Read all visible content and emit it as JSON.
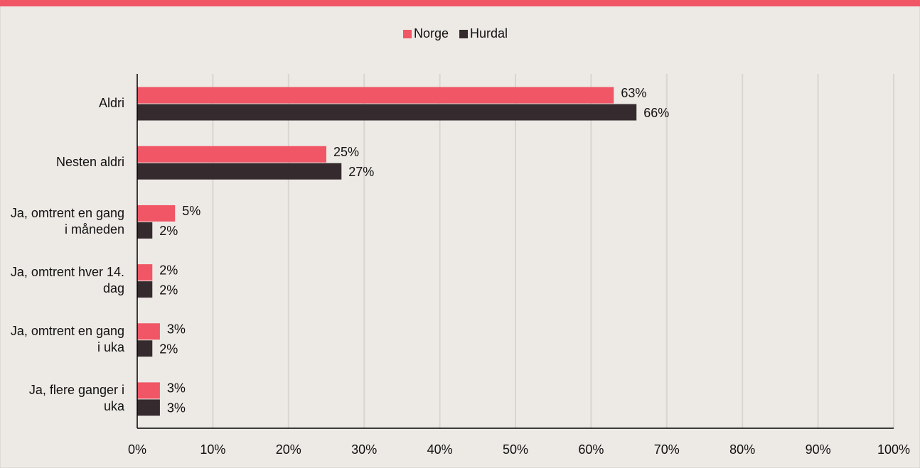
{
  "chart_data": {
    "type": "hbar",
    "categories": [
      "Aldri",
      "Nesten aldri",
      "Ja, omtrent en gang i måneden",
      "Ja, omtrent hver 14. dag",
      "Ja, omtrent en gang i uka",
      "Ja, flere ganger i uka"
    ],
    "series": [
      {
        "name": "Norge",
        "color": "#f05665",
        "values": [
          63,
          25,
          5,
          2,
          3,
          3
        ],
        "value_labels": [
          "63%",
          "25%",
          "5%",
          "2%",
          "3%",
          "3%"
        ]
      },
      {
        "name": "Hurdal",
        "color": "#352b2e",
        "values": [
          66,
          27,
          2,
          2,
          2,
          3
        ],
        "value_labels": [
          "66%",
          "27%",
          "2%",
          "2%",
          "2%",
          "3%"
        ]
      }
    ],
    "xlim": [
      0,
      100
    ],
    "xticks": [
      {
        "value": 0,
        "label": "0%"
      },
      {
        "value": 10,
        "label": "10%"
      },
      {
        "value": 20,
        "label": "20%"
      },
      {
        "value": 30,
        "label": "30%"
      },
      {
        "value": 40,
        "label": "40%"
      },
      {
        "value": 50,
        "label": "50%"
      },
      {
        "value": 60,
        "label": "60%"
      },
      {
        "value": 70,
        "label": "70%"
      },
      {
        "value": 80,
        "label": "80%"
      },
      {
        "value": 90,
        "label": "90%"
      },
      {
        "value": 100,
        "label": "100%"
      }
    ],
    "grid": true,
    "legend": "top"
  }
}
